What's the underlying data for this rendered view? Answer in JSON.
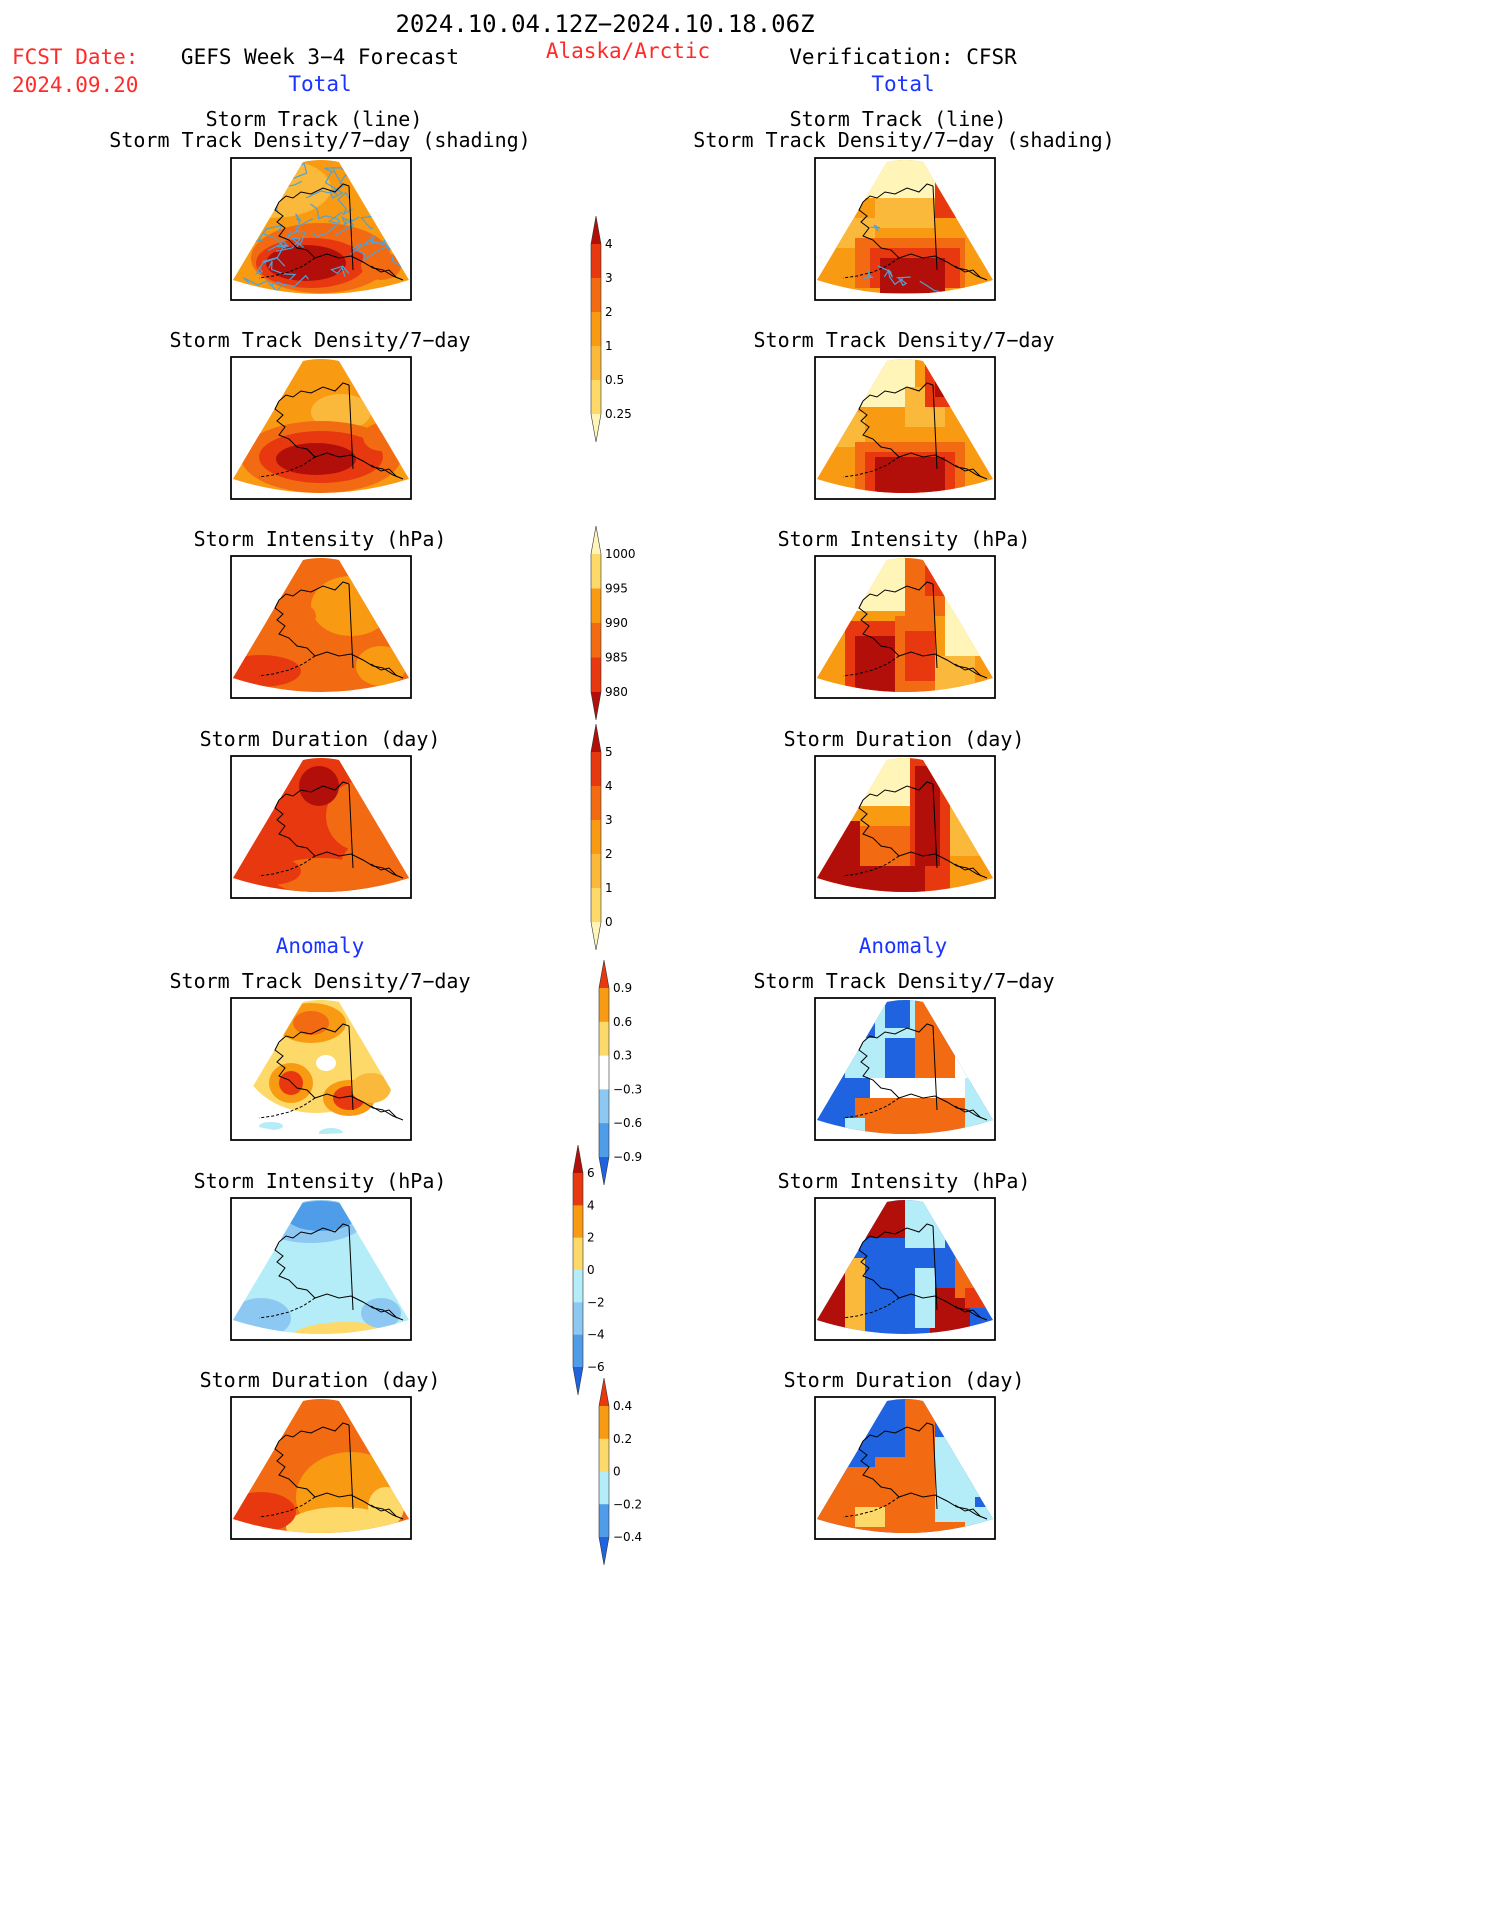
{
  "header": {
    "title": "2024.10.04.12Z−2024.10.18.06Z",
    "fcst_label": "FCST Date:",
    "fcst_date": "2024.09.20",
    "forecast_title": "GEFS Week 3−4 Forecast",
    "region": "Alaska/Arctic",
    "verification": "Verification: CFSR",
    "left_section": "Total",
    "right_section": "Total",
    "left_anomaly": "Anomaly",
    "right_anomaly": "Anomaly"
  },
  "panel_titles": {
    "track_line": "Storm Track (line)",
    "track_shading": "Storm Track Density/7−day (shading)",
    "density": "Storm Track Density/7−day",
    "intensity": "Storm Intensity (hPa)",
    "duration": "Storm Duration (day)"
  },
  "colors": {
    "c_lightyellow": "#fff5b8",
    "c_yellow": "#fdd96a",
    "c_lightorange": "#fbb93c",
    "c_orange": "#f99a13",
    "c_orangered": "#f26b13",
    "c_red": "#e8380f",
    "c_darkred": "#b30f0a",
    "c_lightblue": "#b4ecf7",
    "c_skyblue": "#8cc8f2",
    "c_midblue": "#4f9ce8",
    "c_blue": "#1f63e0",
    "track_line": "#4ea2d8"
  },
  "chart_data": [
    {
      "type": "heatmap",
      "id": "colorbar_density",
      "title": "",
      "levels": [
        0.25,
        0.5,
        1,
        2,
        3,
        4
      ],
      "tick_labels": [
        "4",
        "3",
        "2",
        "1",
        "0.5",
        "0.25"
      ],
      "colors": [
        "#fff5b8",
        "#fdd96a",
        "#fbb93c",
        "#f99a13",
        "#f26b13",
        "#e8380f",
        "#b30f0a"
      ]
    },
    {
      "type": "heatmap",
      "id": "colorbar_intensity",
      "title": "",
      "levels": [
        980,
        985,
        990,
        995,
        1000
      ],
      "tick_labels": [
        "1000",
        "995",
        "990",
        "985",
        "980"
      ],
      "colors": [
        "#b30f0a",
        "#e8380f",
        "#f26b13",
        "#f99a13",
        "#fdd96a",
        "#fff5b8"
      ]
    },
    {
      "type": "heatmap",
      "id": "colorbar_duration",
      "title": "",
      "levels": [
        0,
        1,
        2,
        3,
        4,
        5
      ],
      "tick_labels": [
        "5",
        "4",
        "3",
        "2",
        "1",
        "0"
      ],
      "colors": [
        "#fff5b8",
        "#fdd96a",
        "#fbb93c",
        "#f99a13",
        "#f26b13",
        "#e8380f",
        "#b30f0a"
      ]
    },
    {
      "type": "heatmap",
      "id": "colorbar_density_anom",
      "title": "",
      "levels": [
        -0.9,
        -0.6,
        -0.3,
        0.3,
        0.6,
        0.9
      ],
      "tick_labels": [
        "0.9",
        "0.6",
        "0.3",
        "−0.3",
        "−0.6",
        "−0.9"
      ],
      "colors": [
        "#1f63e0",
        "#4f9ce8",
        "#8cc8f2",
        "#ffffff",
        "#fdd96a",
        "#f99a13",
        "#e8380f"
      ]
    },
    {
      "type": "heatmap",
      "id": "colorbar_intensity_anom",
      "title": "",
      "levels": [
        -6,
        -4,
        -2,
        0,
        2,
        4,
        6
      ],
      "tick_labels": [
        "6",
        "4",
        "2",
        "0",
        "−2",
        "−4",
        "−6"
      ],
      "colors": [
        "#1f63e0",
        "#4f9ce8",
        "#8cc8f2",
        "#b4ecf7",
        "#fdd96a",
        "#f99a13",
        "#e8380f",
        "#b30f0a"
      ]
    },
    {
      "type": "heatmap",
      "id": "colorbar_duration_anom",
      "title": "",
      "levels": [
        -0.4,
        -0.2,
        0,
        0.2,
        0.4
      ],
      "tick_labels": [
        "0.4",
        "0.2",
        "0",
        "−0.2",
        "−0.4"
      ],
      "colors": [
        "#1f63e0",
        "#4f9ce8",
        "#b4ecf7",
        "#fdd96a",
        "#f99a13",
        "#e8380f"
      ]
    }
  ]
}
